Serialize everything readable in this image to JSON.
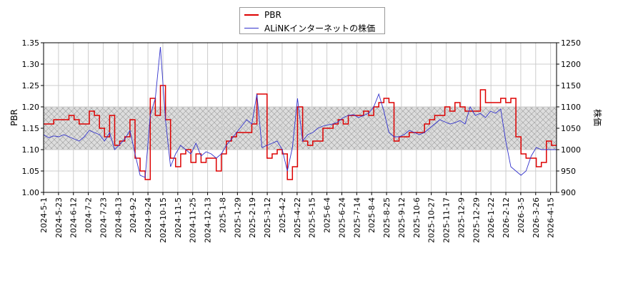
{
  "chart_data": {
    "type": "line",
    "title": "",
    "ylabel_left": "PBR",
    "ylabel_right": "株価",
    "ylim_left": [
      1.0,
      1.35
    ],
    "ylim_right": [
      900,
      1250
    ],
    "yticks_left": [
      "1.00",
      "1.05",
      "1.10",
      "1.15",
      "1.20",
      "1.25",
      "1.30",
      "1.35"
    ],
    "yticks_right": [
      "900",
      "950",
      "1000",
      "1050",
      "1100",
      "1150",
      "1200",
      "1250"
    ],
    "xticks": [
      "2024-5-1",
      "2024-5-23",
      "2024-6-12",
      "2024-7-2",
      "2024-7-23",
      "2024-8-13",
      "2024-9-2",
      "2024-9-24",
      "2024-10-15",
      "2024-11-5",
      "2024-11-25",
      "2024-12-13",
      "2025-1-8",
      "2025-1-29",
      "2025-2-19",
      "2025-3-12",
      "2025-4-2",
      "2025-4-22",
      "2025-5-15",
      "2025-6-4",
      "2025-6-24",
      "2025-7-14",
      "2025-8-4",
      "2025-8-25",
      "2025-9-12",
      "2025-10-6",
      "2025-10-27",
      "2025-11-17",
      "2025-12-9",
      "2025-12-29",
      "2026-1-22",
      "2026-2-12",
      "2026-3-5",
      "2026-3-26",
      "2026-4-15"
    ],
    "grid": true,
    "band_left": [
      1.1,
      1.2
    ],
    "legend_position": "top-center",
    "colors": {
      "pbr": "#dd0000",
      "price": "#3333cc",
      "band_fill": "#dddddd",
      "band_hatch": "#999999",
      "grid": "#cccccc"
    },
    "series": [
      {
        "name": "PBR",
        "axis": "left",
        "values": [
          1.16,
          1.16,
          1.17,
          1.17,
          1.17,
          1.18,
          1.17,
          1.16,
          1.16,
          1.19,
          1.18,
          1.15,
          1.13,
          1.18,
          1.11,
          1.12,
          1.13,
          1.17,
          1.08,
          1.05,
          1.03,
          1.22,
          1.18,
          1.25,
          1.17,
          1.08,
          1.06,
          1.09,
          1.1,
          1.07,
          1.09,
          1.07,
          1.08,
          1.08,
          1.05,
          1.09,
          1.12,
          1.13,
          1.14,
          1.14,
          1.14,
          1.16,
          1.23,
          1.23,
          1.08,
          1.09,
          1.1,
          1.09,
          1.03,
          1.06,
          1.2,
          1.12,
          1.11,
          1.12,
          1.12,
          1.15,
          1.15,
          1.16,
          1.17,
          1.16,
          1.18,
          1.18,
          1.18,
          1.19,
          1.18,
          1.2,
          1.21,
          1.22,
          1.21,
          1.12,
          1.13,
          1.13,
          1.14,
          1.14,
          1.14,
          1.16,
          1.17,
          1.18,
          1.18,
          1.2,
          1.19,
          1.21,
          1.2,
          1.19,
          1.19,
          1.19,
          1.24,
          1.21,
          1.21,
          1.21,
          1.22,
          1.21,
          1.22,
          1.13,
          1.09,
          1.08,
          1.08,
          1.06,
          1.07,
          1.12,
          1.11,
          1.11
        ]
      },
      {
        "name": "ALiNKインターネットの株価",
        "axis": "right",
        "values": [
          1035,
          1028,
          1032,
          1030,
          1035,
          1030,
          1025,
          1020,
          1030,
          1045,
          1040,
          1035,
          1020,
          1040,
          1000,
          1012,
          1025,
          1045,
          990,
          940,
          935,
          1080,
          1120,
          1240,
          1070,
          960,
          990,
          1010,
          1000,
          990,
          1015,
          985,
          995,
          990,
          980,
          990,
          1010,
          1025,
          1040,
          1055,
          1070,
          1060,
          1130,
          1005,
          1010,
          1015,
          1020,
          1000,
          950,
          1005,
          1120,
          1020,
          1035,
          1040,
          1050,
          1055,
          1058,
          1060,
          1065,
          1075,
          1080,
          1082,
          1075,
          1080,
          1085,
          1100,
          1130,
          1090,
          1040,
          1030,
          1030,
          1035,
          1045,
          1040,
          1035,
          1040,
          1050,
          1060,
          1070,
          1065,
          1060,
          1063,
          1068,
          1060,
          1100,
          1080,
          1085,
          1075,
          1090,
          1085,
          1095,
          1020,
          960,
          950,
          940,
          950,
          985,
          1005,
          1000,
          1000,
          1000,
          1000
        ]
      }
    ]
  }
}
